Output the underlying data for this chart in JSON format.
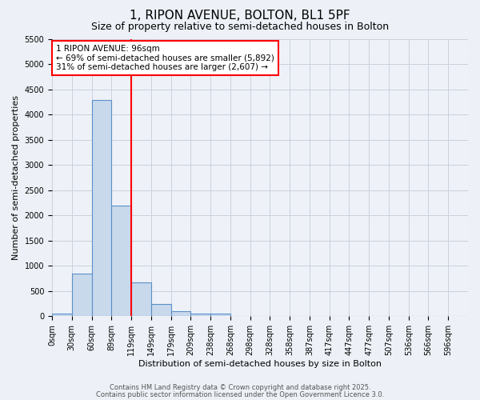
{
  "title": "1, RIPON AVENUE, BOLTON, BL1 5PF",
  "subtitle": "Size of property relative to semi-detached houses in Bolton",
  "xlabel": "Distribution of semi-detached houses by size in Bolton",
  "ylabel": "Number of semi-detached properties",
  "bar_labels": [
    "0sqm",
    "30sqm",
    "60sqm",
    "89sqm",
    "119sqm",
    "149sqm",
    "179sqm",
    "209sqm",
    "238sqm",
    "268sqm",
    "298sqm",
    "328sqm",
    "358sqm",
    "387sqm",
    "417sqm",
    "447sqm",
    "477sqm",
    "507sqm",
    "536sqm",
    "566sqm",
    "596sqm"
  ],
  "bar_values": [
    50,
    850,
    4300,
    2200,
    680,
    250,
    100,
    60,
    55,
    0,
    0,
    0,
    0,
    0,
    0,
    0,
    0,
    0,
    0,
    0,
    0
  ],
  "bar_color": "#c8d9ec",
  "bar_edge_color": "#5b8fc9",
  "red_line_bar_index": 3,
  "marker_line_color": "red",
  "ylim": [
    0,
    5500
  ],
  "yticks": [
    0,
    500,
    1000,
    1500,
    2000,
    2500,
    3000,
    3500,
    4000,
    4500,
    5000,
    5500
  ],
  "annotation_title": "1 RIPON AVENUE: 96sqm",
  "annotation_line1": "← 69% of semi-detached houses are smaller (5,892)",
  "annotation_line2": "31% of semi-detached houses are larger (2,607) →",
  "footer1": "Contains HM Land Registry data © Crown copyright and database right 2025.",
  "footer2": "Contains public sector information licensed under the Open Government Licence 3.0.",
  "bg_color": "#edf1f7",
  "plot_bg_color": "#eef2f8",
  "grid_color": "#c8d0de",
  "title_fontsize": 11,
  "subtitle_fontsize": 9,
  "tick_fontsize": 7,
  "ylabel_fontsize": 8,
  "xlabel_fontsize": 8,
  "ann_fontsize": 7.5
}
